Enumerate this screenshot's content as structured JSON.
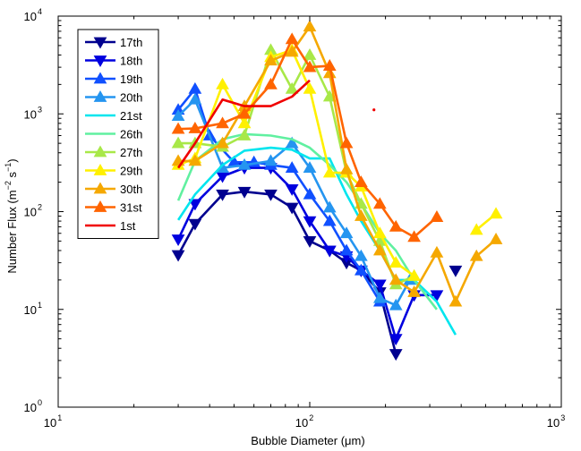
{
  "chart_data": {
    "type": "line",
    "xlabel": "Bubble Diameter (μm)",
    "ylabel_base": "Number Flux (m",
    "ylabel_exp1": "−2",
    "ylabel_mid": " s",
    "ylabel_exp2": "−1",
    "ylabel_end": ")",
    "xscale": "log",
    "yscale": "log",
    "xlim": [
      10,
      1000
    ],
    "ylim": [
      1,
      10000
    ],
    "x_ticks": [
      {
        "value": 10,
        "base": "10",
        "exp": "1"
      },
      {
        "value": 100,
        "base": "10",
        "exp": "2"
      },
      {
        "value": 1000,
        "base": "10",
        "exp": "3"
      }
    ],
    "y_ticks": [
      {
        "value": 1,
        "base": "10",
        "exp": "0"
      },
      {
        "value": 10,
        "base": "10",
        "exp": "1"
      },
      {
        "value": 100,
        "base": "10",
        "exp": "2"
      },
      {
        "value": 1000,
        "base": "10",
        "exp": "3"
      },
      {
        "value": 10000,
        "base": "10",
        "exp": "4"
      }
    ],
    "grid": false,
    "legend_position": "top-left",
    "series": [
      {
        "name": "17th",
        "color": "#00008F",
        "marker": "triangle-down",
        "x": [
          30,
          35,
          45,
          55,
          70,
          85,
          100,
          120,
          140,
          160,
          190,
          220
        ],
        "y": [
          36,
          75,
          150,
          160,
          150,
          110,
          50,
          40,
          30,
          25,
          15,
          3.5
        ],
        "extra": [
          {
            "x": 380,
            "y": 25
          }
        ]
      },
      {
        "name": "18th",
        "color": "#0000DF",
        "marker": "triangle-down",
        "x": [
          30,
          35,
          45,
          55,
          70,
          85,
          100,
          120,
          140,
          160,
          190,
          220,
          260,
          320
        ],
        "y": [
          52,
          120,
          230,
          280,
          280,
          170,
          80,
          40,
          35,
          25,
          18,
          5,
          14,
          14
        ]
      },
      {
        "name": "19th",
        "color": "#1050FF",
        "marker": "triangle-up",
        "x": [
          30,
          35,
          40,
          50,
          60,
          70,
          85,
          100,
          120,
          140,
          160,
          190
        ],
        "y": [
          1100,
          1800,
          600,
          320,
          320,
          300,
          280,
          150,
          80,
          40,
          25,
          12
        ]
      },
      {
        "name": "20th",
        "color": "#2595F0",
        "marker": "triangle-up",
        "x": [
          30,
          35,
          45,
          55,
          70,
          85,
          100,
          120,
          140,
          160,
          190,
          220,
          250
        ],
        "y": [
          950,
          1400,
          280,
          300,
          330,
          500,
          280,
          110,
          60,
          35,
          13,
          11,
          20
        ]
      },
      {
        "name": "21st",
        "color": "#00E5EE",
        "marker": "none",
        "x": [
          30,
          35,
          45,
          55,
          70,
          85,
          100,
          120,
          140,
          160,
          190,
          220,
          260,
          320,
          380
        ],
        "y": [
          82,
          150,
          300,
          420,
          450,
          430,
          350,
          350,
          150,
          80,
          40,
          20,
          20,
          12,
          5.5
        ]
      },
      {
        "name": "26th",
        "color": "#60F0A0",
        "marker": "none",
        "x": [
          30,
          35,
          45,
          55,
          70,
          85,
          100,
          120,
          140,
          160,
          190,
          220,
          260,
          320
        ],
        "y": [
          130,
          330,
          550,
          620,
          600,
          550,
          450,
          300,
          200,
          120,
          60,
          40,
          20,
          10
        ]
      },
      {
        "name": "27th",
        "color": "#A8E848",
        "marker": "triangle-up",
        "x": [
          30,
          35,
          45,
          55,
          70,
          85,
          100,
          120,
          140,
          160,
          190,
          220,
          260
        ],
        "y": [
          500,
          500,
          460,
          600,
          4500,
          1800,
          4000,
          1500,
          250,
          120,
          50,
          18,
          22
        ]
      },
      {
        "name": "29th",
        "color": "#FFF000",
        "marker": "triangle-up",
        "x": [
          30,
          35,
          45,
          55,
          70,
          85,
          100,
          120,
          140,
          160,
          190,
          220,
          260
        ],
        "y": [
          300,
          350,
          2000,
          800,
          3800,
          4500,
          1800,
          250,
          250,
          180,
          60,
          30,
          22
        ],
        "extra": [
          {
            "x": 460,
            "y": 65
          },
          {
            "x": 550,
            "y": 95
          }
        ]
      },
      {
        "name": "30th",
        "color": "#F5A800",
        "marker": "triangle-up",
        "x": [
          30,
          35,
          45,
          55,
          70,
          85,
          100,
          120,
          140,
          160,
          190,
          220,
          260,
          320,
          380,
          460,
          550
        ],
        "y": [
          330,
          330,
          500,
          1200,
          3500,
          4300,
          7800,
          2600,
          270,
          90,
          40,
          20,
          15,
          38,
          12,
          35,
          52
        ]
      },
      {
        "name": "31st",
        "color": "#FF6400",
        "marker": "triangle-up",
        "x": [
          30,
          35,
          45,
          55,
          70,
          85,
          100,
          120,
          140,
          160,
          190,
          220,
          260,
          320
        ],
        "y": [
          700,
          710,
          800,
          1000,
          2000,
          5800,
          3000,
          3100,
          500,
          200,
          120,
          70,
          55,
          88
        ]
      },
      {
        "name": "1st",
        "color": "#F00000",
        "marker": "none",
        "x": [
          30,
          35,
          45,
          55,
          70,
          85,
          100
        ],
        "y": [
          280,
          500,
          1400,
          1200,
          1200,
          1500,
          2200
        ],
        "extra_dot": [
          {
            "x": 180,
            "y": 1100
          }
        ]
      }
    ]
  }
}
